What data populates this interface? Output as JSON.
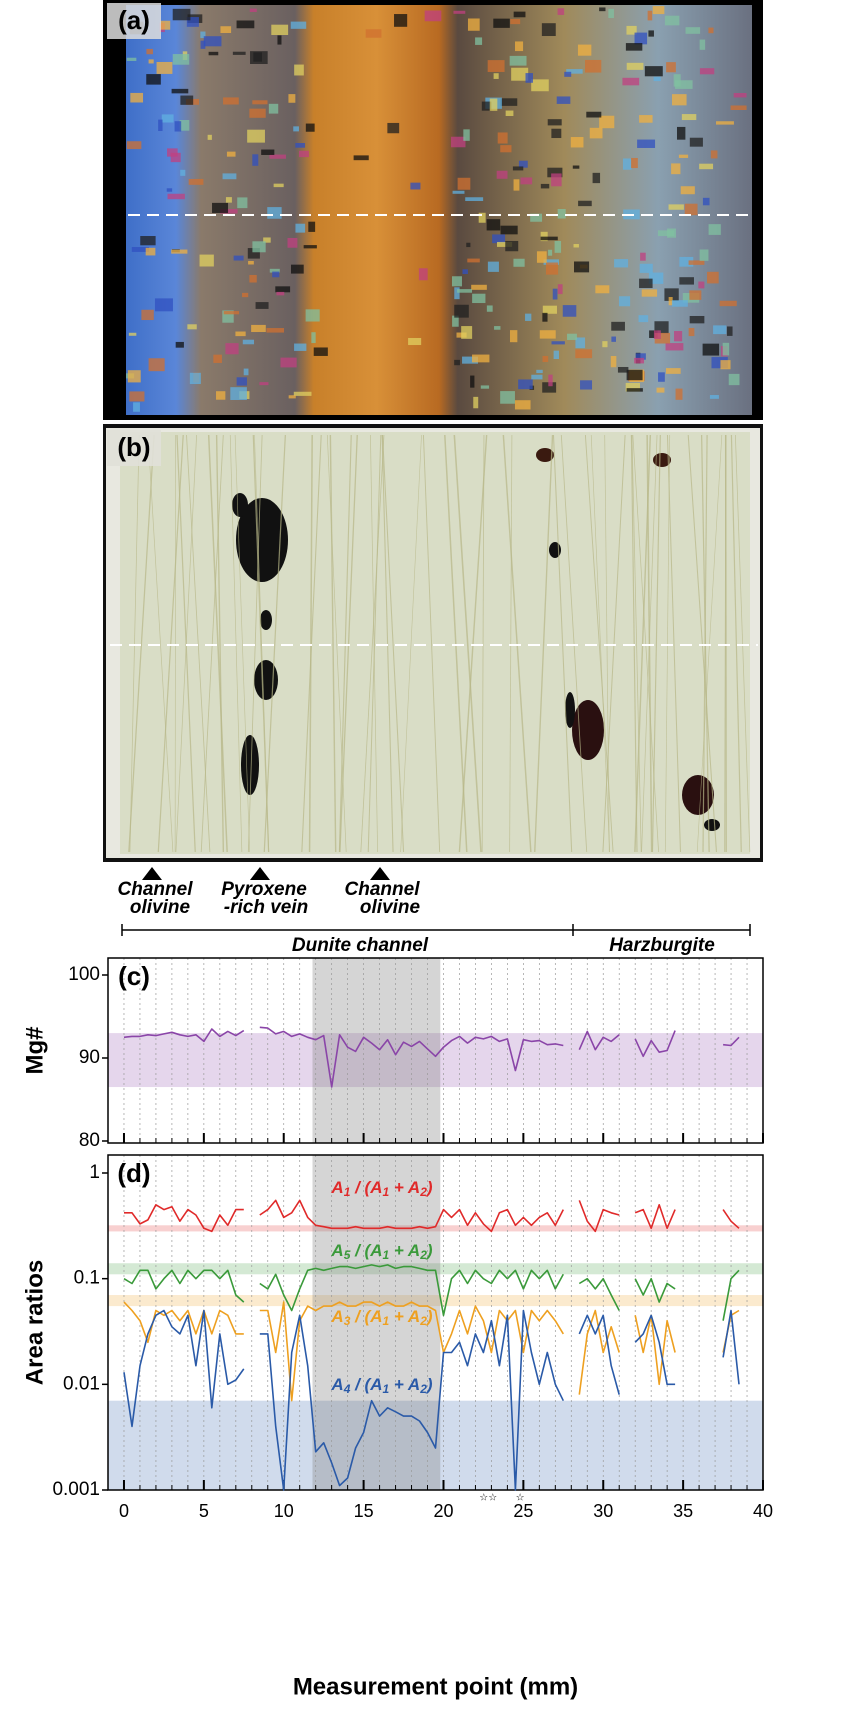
{
  "panels": {
    "a": {
      "label": "(a)"
    },
    "b": {
      "label": "(b)"
    }
  },
  "markers": [
    {
      "lines": [
        "Channel",
        "olivine"
      ]
    },
    {
      "lines": [
        "Pyroxene",
        "-rich vein"
      ]
    },
    {
      "lines": [
        "Channel",
        "olivine"
      ]
    }
  ],
  "zones": [
    {
      "label": "Dunite channel"
    },
    {
      "label": "Harzburgite"
    }
  ],
  "chart_data": [
    {
      "type": "line",
      "panel_label": "(c)",
      "ylabel": "Mg#",
      "xlim": [
        -1,
        40
      ],
      "xticks": [
        0,
        5,
        10,
        15,
        20,
        25,
        30,
        35,
        40
      ],
      "x_minor_ticks": [
        0,
        1,
        2,
        3,
        4,
        5,
        6,
        7,
        8,
        9,
        10,
        11,
        12,
        13,
        14,
        15,
        16,
        17,
        18,
        19,
        20,
        21,
        22,
        23,
        24,
        25,
        26,
        27,
        28,
        29,
        30,
        31,
        32,
        33,
        34,
        35,
        36,
        37,
        38,
        39
      ],
      "show_xtick_labels": false,
      "ylim": [
        80,
        100
      ],
      "yticks": [
        80,
        90,
        100
      ],
      "log_scale": false,
      "shaded_x": [
        11.8,
        19.8
      ],
      "x": [
        0,
        0.5,
        1,
        1.5,
        2,
        2.5,
        3,
        3.5,
        4,
        4.5,
        5,
        5.5,
        6,
        6.5,
        7,
        7.5,
        8,
        8.5,
        9,
        9.5,
        10,
        10.5,
        11,
        11.5,
        12,
        12.5,
        13,
        13.5,
        14,
        14.5,
        15,
        15.5,
        16,
        16.5,
        17,
        17.5,
        18,
        18.5,
        19,
        19.5,
        20,
        20.5,
        21,
        21.5,
        22,
        22.5,
        23,
        23.5,
        24,
        24.5,
        25,
        25.5,
        26,
        26.5,
        27,
        27.5,
        28,
        28.5,
        29,
        29.5,
        30,
        30.5,
        31,
        31.5,
        32,
        32.5,
        33,
        33.5,
        34,
        34.5,
        35,
        35.5,
        36,
        36.5,
        37,
        37.5,
        38,
        38.5
      ],
      "series": [
        {
          "color": "#8a45a8",
          "band": [
            86.5,
            93
          ],
          "values": [
            92.5,
            92.6,
            92.6,
            92.8,
            92.7,
            92.9,
            93.1,
            92.8,
            92.6,
            92.8,
            92.0,
            93.5,
            92.6,
            93.2,
            92.7,
            93.3,
            null,
            93.7,
            93.6,
            92.9,
            93.2,
            92.6,
            92.9,
            92.5,
            92.2,
            92.7,
            86.5,
            92.8,
            91.3,
            90.8,
            92.5,
            91.8,
            91.0,
            92.2,
            90.4,
            91.9,
            91.4,
            92.0,
            91.1,
            90.2,
            91.3,
            92.1,
            92.6,
            91.8,
            92.5,
            92.3,
            92.6,
            92.0,
            92.3,
            88.5,
            92.2,
            92.0,
            92.1,
            91.6,
            91.7,
            91.5,
            null,
            91.0,
            93.2,
            91.0,
            92.5,
            92.0,
            92.8,
            null,
            92.3,
            90.2,
            92.1,
            90.7,
            90.9,
            93.3,
            null,
            null,
            null,
            null,
            null,
            91.6,
            91.5,
            92.5
          ]
        }
      ]
    },
    {
      "type": "line",
      "panel_label": "(d)",
      "ylabel": "Area ratios",
      "xlabel": "Measurement point (mm)",
      "xlim": [
        -1,
        40
      ],
      "xticks": [
        0,
        5,
        10,
        15,
        20,
        25,
        30,
        35,
        40
      ],
      "x_minor_ticks": [
        0,
        1,
        2,
        3,
        4,
        5,
        6,
        7,
        8,
        9,
        10,
        11,
        12,
        13,
        14,
        15,
        16,
        17,
        18,
        19,
        20,
        21,
        22,
        23,
        24,
        25,
        26,
        27,
        28,
        29,
        30,
        31,
        32,
        33,
        34,
        35,
        36,
        37,
        38,
        39
      ],
      "show_xtick_labels": true,
      "ylim": [
        0.001,
        1
      ],
      "yticks": [
        0.001,
        0.01,
        0.1,
        1
      ],
      "log_scale": true,
      "shaded_x": [
        11.8,
        19.8
      ],
      "annotations": [
        {
          "x": 22.8,
          "label": "☆☆"
        },
        {
          "x": 24.8,
          "label": "☆"
        }
      ],
      "x": [
        0,
        0.5,
        1,
        1.5,
        2,
        2.5,
        3,
        3.5,
        4,
        4.5,
        5,
        5.5,
        6,
        6.5,
        7,
        7.5,
        8,
        8.5,
        9,
        9.5,
        10,
        10.5,
        11,
        11.5,
        12,
        12.5,
        13,
        13.5,
        14,
        14.5,
        15,
        15.5,
        16,
        16.5,
        17,
        17.5,
        18,
        18.5,
        19,
        19.5,
        20,
        20.5,
        21,
        21.5,
        22,
        22.5,
        23,
        23.5,
        24,
        24.5,
        25,
        25.5,
        26,
        26.5,
        27,
        27.5,
        28,
        28.5,
        29,
        29.5,
        30,
        30.5,
        31,
        31.5,
        32,
        32.5,
        33,
        33.5,
        34,
        34.5,
        35,
        35.5,
        36,
        36.5,
        37,
        37.5,
        38,
        38.5
      ],
      "series": [
        {
          "name": "A1 / (A1 + A2)",
          "color": "#e02a2a",
          "band": [
            0.28,
            0.32
          ],
          "values": [
            0.42,
            0.42,
            0.33,
            0.36,
            0.5,
            0.45,
            0.48,
            0.35,
            0.45,
            0.4,
            0.3,
            0.28,
            0.4,
            0.32,
            0.45,
            0.45,
            null,
            0.4,
            0.45,
            0.55,
            0.38,
            0.42,
            0.55,
            0.38,
            0.32,
            0.31,
            0.3,
            0.3,
            0.3,
            0.31,
            0.3,
            0.3,
            0.3,
            0.31,
            0.3,
            0.3,
            0.3,
            0.31,
            0.3,
            0.31,
            0.45,
            0.38,
            0.45,
            0.32,
            0.42,
            0.33,
            0.28,
            0.42,
            0.45,
            0.32,
            0.38,
            0.32,
            0.38,
            0.42,
            0.32,
            0.45,
            null,
            0.55,
            0.35,
            0.28,
            0.45,
            0.42,
            0.4,
            null,
            0.42,
            0.45,
            0.3,
            0.5,
            0.3,
            0.45,
            null,
            null,
            null,
            null,
            null,
            0.45,
            0.35,
            0.3
          ]
        },
        {
          "name": "A5 / (A1 + A2)",
          "color": "#3a9a3a",
          "band": [
            0.11,
            0.14
          ],
          "values": [
            0.1,
            0.09,
            0.12,
            0.12,
            0.08,
            0.1,
            0.12,
            0.09,
            0.12,
            0.1,
            0.12,
            0.12,
            0.1,
            0.12,
            0.07,
            0.06,
            null,
            0.09,
            0.08,
            0.11,
            0.07,
            0.05,
            0.08,
            0.12,
            0.125,
            0.12,
            0.125,
            0.13,
            0.13,
            0.125,
            0.13,
            0.135,
            0.13,
            0.135,
            0.125,
            0.13,
            0.13,
            0.125,
            0.12,
            0.12,
            0.045,
            0.1,
            0.12,
            0.09,
            0.12,
            0.1,
            0.09,
            0.12,
            0.1,
            0.12,
            0.08,
            0.12,
            0.1,
            0.12,
            0.08,
            0.11,
            null,
            0.09,
            0.1,
            0.08,
            0.1,
            0.07,
            0.05,
            null,
            0.1,
            0.07,
            0.1,
            0.06,
            0.09,
            0.08,
            null,
            null,
            null,
            null,
            null,
            0.04,
            0.1,
            0.12
          ]
        },
        {
          "name": "A3 / (A1 + A2)",
          "color": "#eea020",
          "band": [
            0.055,
            0.07
          ],
          "values": [
            0.06,
            0.05,
            0.04,
            0.025,
            0.05,
            0.045,
            0.05,
            0.04,
            0.05,
            0.03,
            0.05,
            0.03,
            0.05,
            0.045,
            0.03,
            0.03,
            null,
            0.05,
            0.05,
            0.02,
            0.06,
            0.007,
            0.04,
            0.055,
            0.05,
            0.055,
            0.055,
            0.06,
            0.055,
            0.055,
            0.06,
            0.06,
            0.055,
            0.06,
            0.055,
            0.055,
            0.06,
            0.055,
            0.055,
            0.05,
            0.02,
            0.03,
            0.05,
            0.03,
            0.055,
            0.04,
            0.02,
            0.05,
            0.04,
            0.05,
            0.02,
            0.05,
            0.04,
            0.05,
            0.04,
            0.03,
            null,
            0.008,
            0.03,
            0.05,
            0.02,
            0.035,
            0.02,
            null,
            0.045,
            0.02,
            0.045,
            0.01,
            0.04,
            0.02,
            null,
            null,
            null,
            null,
            null,
            0.02,
            0.045,
            0.05
          ]
        },
        {
          "name": "A4 / (A1 + A2)",
          "color": "#2a5aa8",
          "band": [
            0.001,
            0.007
          ],
          "values": [
            0.013,
            0.004,
            0.015,
            0.03,
            0.045,
            0.05,
            0.035,
            0.03,
            0.045,
            0.015,
            0.05,
            0.006,
            0.03,
            0.01,
            0.011,
            0.014,
            null,
            0.03,
            0.03,
            0.004,
            0.001,
            0.02,
            0.045,
            0.015,
            0.0023,
            0.0028,
            0.0018,
            0.0011,
            0.0013,
            0.0025,
            0.0035,
            0.007,
            0.005,
            0.006,
            0.0055,
            0.005,
            0.005,
            0.0045,
            0.0035,
            0.0025,
            0.02,
            0.02,
            0.025,
            0.015,
            0.03,
            0.02,
            0.04,
            0.015,
            0.045,
            0.001,
            0.05,
            0.02,
            0.01,
            0.02,
            0.01,
            0.007,
            null,
            0.03,
            0.045,
            0.03,
            0.045,
            0.015,
            0.008,
            null,
            0.025,
            0.03,
            0.045,
            0.025,
            0.01,
            0.01,
            null,
            null,
            null,
            null,
            null,
            0.018,
            0.05,
            0.01
          ]
        }
      ]
    }
  ]
}
